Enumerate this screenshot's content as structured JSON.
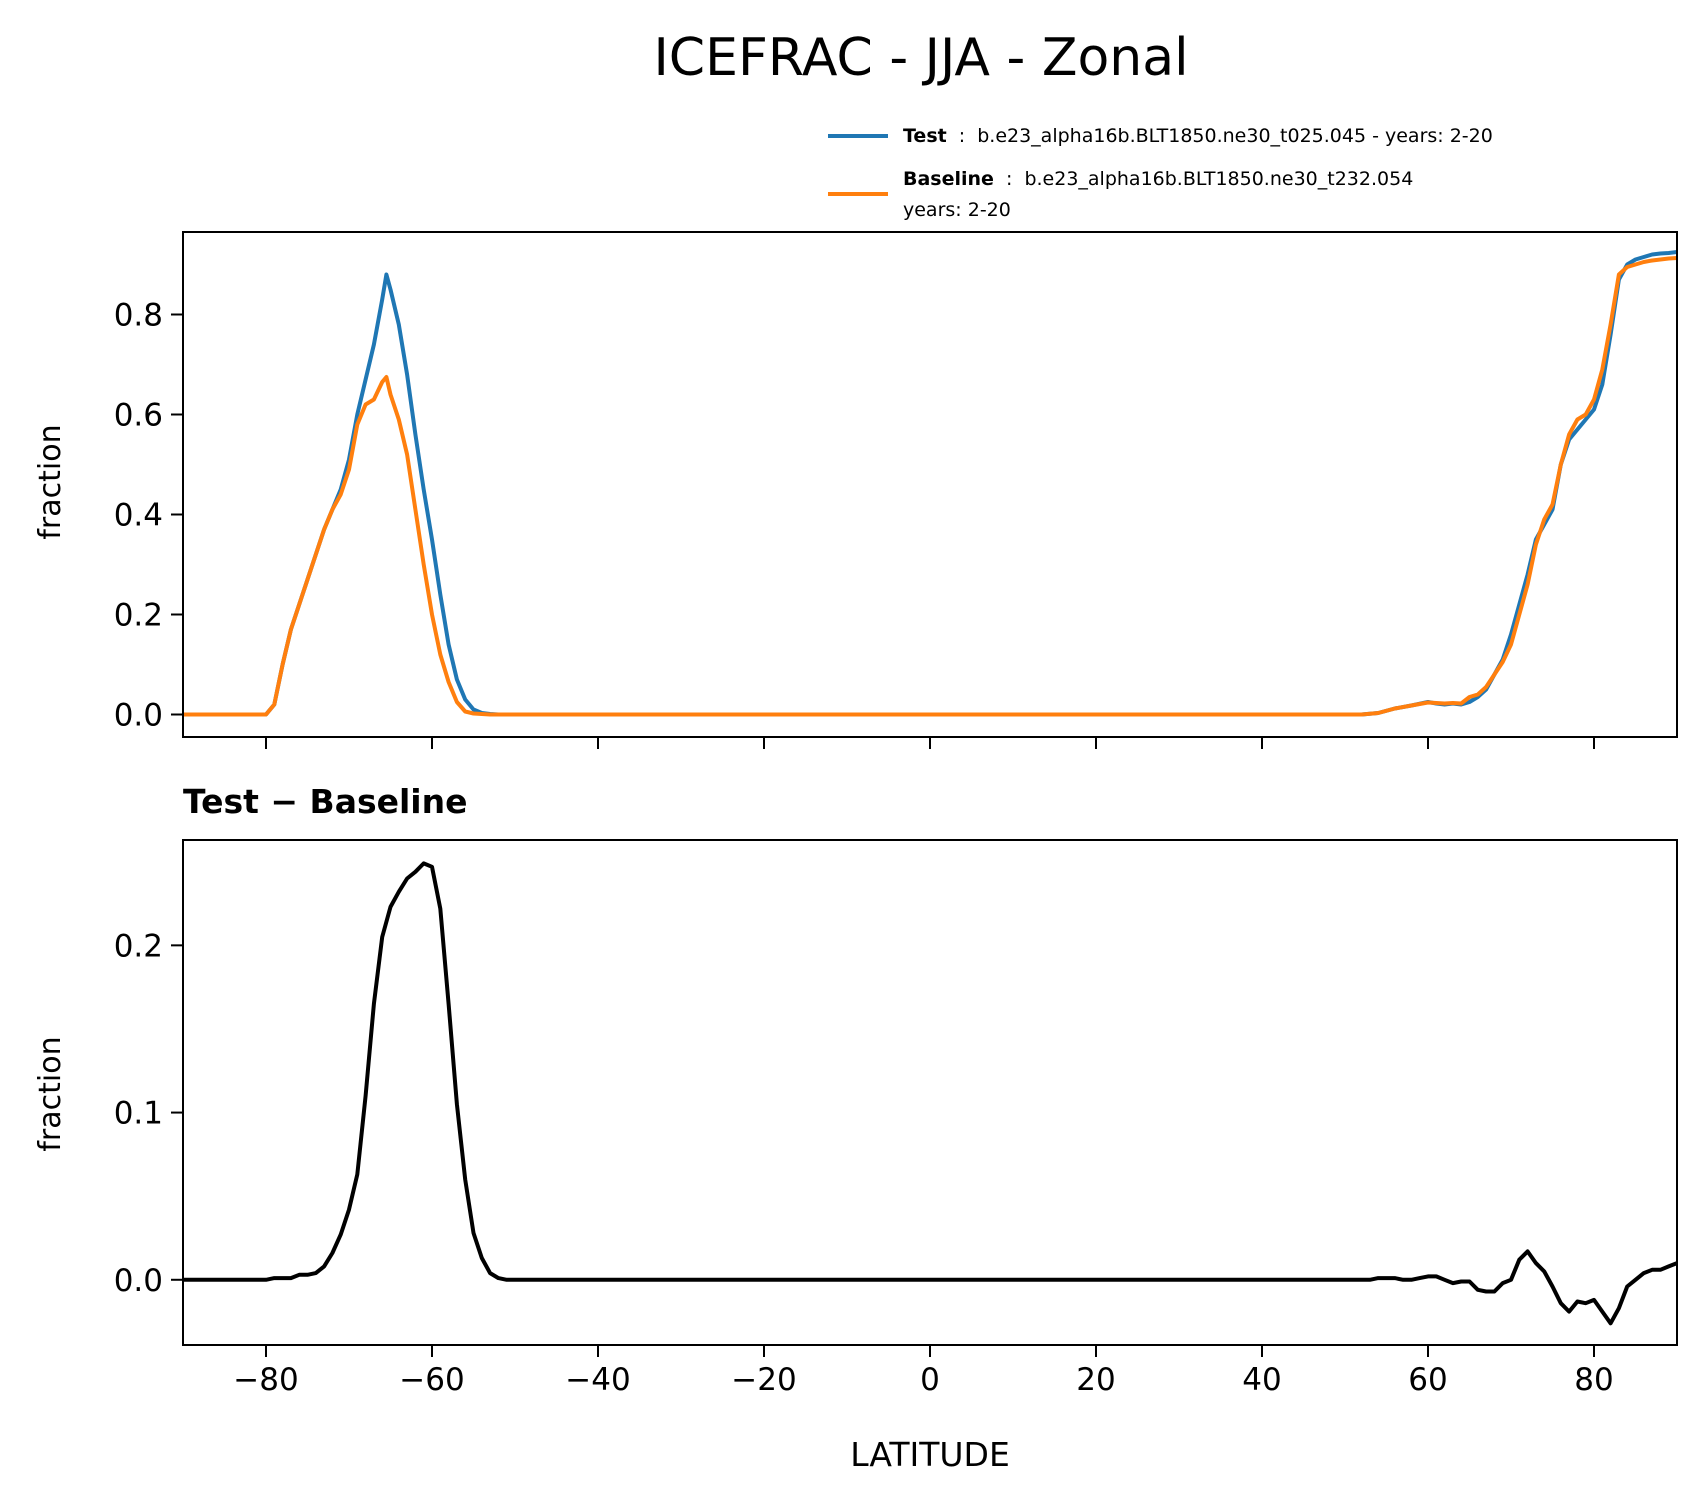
{
  "title": "ICEFRAC - JJA - Zonal",
  "legend": {
    "test": {
      "name": "Test",
      "sep": ":",
      "desc": "b.e23_alpha16b.BLT1850.ne30_t025.045 - years: 2-20",
      "color": "#1f77b4"
    },
    "baseline": {
      "name": "Baseline",
      "sep": ":",
      "desc": "b.e23_alpha16b.BLT1850.ne30_t232.054",
      "desc2": "years: 2-20",
      "color": "#ff7f0e"
    }
  },
  "chart_data": [
    {
      "type": "line",
      "title": "",
      "xlabel": "",
      "ylabel": "fraction",
      "xlim": [
        -90,
        90
      ],
      "ylim": [
        -0.045,
        0.965
      ],
      "xticks": [
        -80,
        -60,
        -40,
        -20,
        0,
        20,
        40,
        60,
        80
      ],
      "xtick_labels_visible": false,
      "yticks": [
        0.0,
        0.2,
        0.4,
        0.6,
        0.8
      ],
      "ytick_labels": [
        "0.0",
        "0.2",
        "0.4",
        "0.6",
        "0.8"
      ],
      "series": [
        {
          "name": "Test",
          "color": "#1f77b4",
          "x": [
            -90,
            -80,
            -79,
            -78,
            -77,
            -76,
            -75,
            -74,
            -73,
            -72,
            -71,
            -70,
            -69,
            -68,
            -67,
            -66,
            -65.5,
            -65,
            -64,
            -63,
            -62,
            -61,
            -60,
            -59,
            -58,
            -57,
            -56,
            -55,
            -54,
            -53,
            -52,
            -50,
            -40,
            -20,
            0,
            20,
            40,
            52,
            54,
            56,
            58,
            60,
            61,
            62,
            63,
            64,
            65,
            66,
            67,
            68,
            69,
            70,
            71,
            72,
            73,
            74,
            75,
            76,
            77,
            78,
            79,
            80,
            81,
            82,
            83,
            84,
            85,
            86,
            87,
            88,
            89,
            90
          ],
          "values": [
            0,
            0,
            0.02,
            0.1,
            0.17,
            0.22,
            0.27,
            0.32,
            0.37,
            0.41,
            0.45,
            0.51,
            0.6,
            0.67,
            0.74,
            0.83,
            0.88,
            0.85,
            0.78,
            0.68,
            0.56,
            0.45,
            0.35,
            0.24,
            0.14,
            0.07,
            0.03,
            0.01,
            0.003,
            0.001,
            0,
            0,
            0,
            0,
            0,
            0,
            0,
            0,
            0.003,
            0.012,
            0.018,
            0.025,
            0.022,
            0.02,
            0.022,
            0.02,
            0.025,
            0.035,
            0.05,
            0.08,
            0.11,
            0.16,
            0.22,
            0.28,
            0.35,
            0.38,
            0.41,
            0.5,
            0.55,
            0.57,
            0.59,
            0.61,
            0.66,
            0.76,
            0.87,
            0.9,
            0.91,
            0.915,
            0.92,
            0.922,
            0.923,
            0.925
          ]
        },
        {
          "name": "Baseline",
          "color": "#ff7f0e",
          "x": [
            -90,
            -80,
            -79,
            -78,
            -77,
            -76,
            -75,
            -74,
            -73,
            -72,
            -71,
            -70,
            -69,
            -68,
            -67,
            -66,
            -65.5,
            -65,
            -64,
            -63,
            -62,
            -61,
            -60,
            -59,
            -58,
            -57,
            -56,
            -55,
            -54,
            -53,
            -52,
            -50,
            -40,
            -20,
            0,
            20,
            40,
            52,
            54,
            56,
            58,
            60,
            61,
            62,
            63,
            64,
            65,
            66,
            67,
            68,
            69,
            70,
            71,
            72,
            73,
            74,
            75,
            76,
            77,
            78,
            79,
            80,
            81,
            82,
            83,
            84,
            85,
            86,
            87,
            88,
            89,
            90
          ],
          "values": [
            0,
            0,
            0.02,
            0.1,
            0.17,
            0.22,
            0.27,
            0.32,
            0.37,
            0.41,
            0.44,
            0.49,
            0.58,
            0.62,
            0.63,
            0.665,
            0.675,
            0.64,
            0.59,
            0.52,
            0.41,
            0.3,
            0.2,
            0.12,
            0.065,
            0.025,
            0.006,
            0.002,
            0.001,
            0,
            0,
            0,
            0,
            0,
            0,
            0,
            0,
            0,
            0.003,
            0.012,
            0.018,
            0.024,
            0.023,
            0.022,
            0.023,
            0.022,
            0.035,
            0.04,
            0.055,
            0.08,
            0.105,
            0.14,
            0.2,
            0.26,
            0.34,
            0.39,
            0.42,
            0.5,
            0.56,
            0.59,
            0.6,
            0.63,
            0.69,
            0.78,
            0.88,
            0.895,
            0.9,
            0.905,
            0.908,
            0.91,
            0.912,
            0.913
          ]
        }
      ]
    },
    {
      "type": "line",
      "title": "Test − Baseline",
      "xlabel": "LATITUDE",
      "ylabel": "fraction",
      "xlim": [
        -90,
        90
      ],
      "ylim": [
        -0.039,
        0.263
      ],
      "xticks": [
        -80,
        -60,
        -40,
        -20,
        0,
        20,
        40,
        60,
        80
      ],
      "xtick_labels": [
        "−80",
        "−60",
        "−40",
        "−20",
        "0",
        "20",
        "40",
        "60",
        "80"
      ],
      "yticks": [
        0.0,
        0.1,
        0.2
      ],
      "ytick_labels": [
        "0.0",
        "0.1",
        "0.2"
      ],
      "series": [
        {
          "name": "Test − Baseline",
          "color": "#000000",
          "x": [
            -90,
            -80,
            -79,
            -78,
            -77,
            -76,
            -75,
            -74,
            -73,
            -72,
            -71,
            -70,
            -69,
            -68,
            -67,
            -66,
            -65,
            -64,
            -63,
            -62,
            -61,
            -60,
            -59,
            -58,
            -57,
            -56,
            -55,
            -54,
            -53,
            -52,
            -51,
            -50,
            -40,
            -20,
            0,
            20,
            40,
            53,
            54,
            55,
            56,
            57,
            58,
            59,
            60,
            61,
            62,
            63,
            64,
            65,
            66,
            67,
            68,
            69,
            70,
            71,
            72,
            73,
            74,
            75,
            76,
            77,
            78,
            79,
            80,
            81,
            82,
            83,
            84,
            85,
            86,
            87,
            88,
            89,
            90
          ],
          "values": [
            0,
            0,
            0.001,
            0.001,
            0.001,
            0.003,
            0.003,
            0.004,
            0.008,
            0.016,
            0.027,
            0.042,
            0.063,
            0.11,
            0.165,
            0.205,
            0.223,
            0.232,
            0.24,
            0.244,
            0.249,
            0.247,
            0.222,
            0.165,
            0.105,
            0.06,
            0.028,
            0.013,
            0.004,
            0.001,
            0,
            0,
            0,
            0,
            0,
            0,
            0,
            0,
            0.001,
            0.001,
            0.001,
            0.0,
            0.0,
            0.001,
            0.002,
            0.002,
            0.0,
            -0.002,
            -0.001,
            -0.001,
            -0.006,
            -0.007,
            -0.007,
            -0.002,
            0.0,
            0.012,
            0.017,
            0.01,
            0.005,
            -0.004,
            -0.014,
            -0.019,
            -0.013,
            -0.014,
            -0.012,
            -0.019,
            -0.026,
            -0.017,
            -0.004,
            0.0,
            0.004,
            0.006,
            0.006,
            0.008,
            0.01
          ]
        }
      ]
    }
  ]
}
